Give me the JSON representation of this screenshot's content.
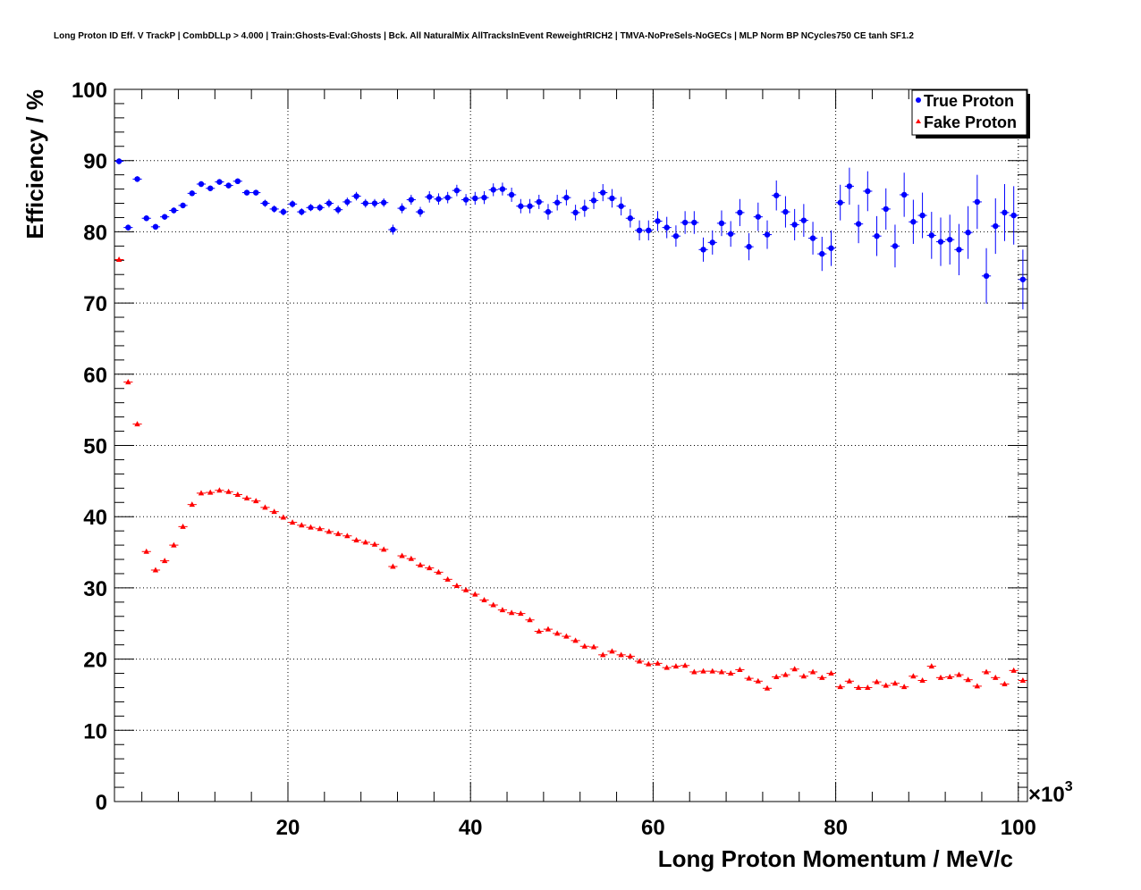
{
  "chart_data": {
    "type": "scatter",
    "title": "Long Proton ID Eff. V TrackP | CombDLLp > 4.000 | Train:Ghosts-Eval:Ghosts | Bck. All NaturalMix AllTracksInEvent ReweightRICH2 | TMVA-NoPreSels-NoGECs | MLP Norm BP NCycles750 CE tanh SF1.2",
    "xlabel": "Long Proton Momentum / MeV/c",
    "ylabel": "Efficiency / %",
    "x_multiplier_label": "×10",
    "x_multiplier_exp": "3",
    "xlim": [
      1,
      101
    ],
    "ylim": [
      0,
      100
    ],
    "x_ticks": [
      "20",
      "40",
      "60",
      "80",
      "100"
    ],
    "y_ticks": [
      "0",
      "10",
      "20",
      "30",
      "40",
      "50",
      "60",
      "70",
      "80",
      "90",
      "100"
    ],
    "grid": true,
    "legend_position": "top-right",
    "series": [
      {
        "name": "True Proton",
        "color": "#0000ff",
        "marker": "circle",
        "x": [
          1.5,
          2.5,
          3.5,
          4.5,
          5.5,
          6.5,
          7.5,
          8.5,
          9.5,
          10.5,
          11.5,
          12.5,
          13.5,
          14.5,
          15.5,
          16.5,
          17.5,
          18.5,
          19.5,
          20.5,
          21.5,
          22.5,
          23.5,
          24.5,
          25.5,
          26.5,
          27.5,
          28.5,
          29.5,
          30.5,
          31.5,
          32.5,
          33.5,
          34.5,
          35.5,
          36.5,
          37.5,
          38.5,
          39.5,
          40.5,
          41.5,
          42.5,
          43.5,
          44.5,
          45.5,
          46.5,
          47.5,
          48.5,
          49.5,
          50.5,
          51.5,
          52.5,
          53.5,
          54.5,
          55.5,
          56.5,
          57.5,
          58.5,
          59.5,
          60.5,
          61.5,
          62.5,
          63.5,
          64.5,
          65.5,
          66.5,
          67.5,
          68.5,
          69.5,
          70.5,
          71.5,
          72.5,
          73.5,
          74.5,
          75.5,
          76.5,
          77.5,
          78.5,
          79.5,
          80.5,
          81.5,
          82.5,
          83.5,
          84.5,
          85.5,
          86.5,
          87.5,
          88.5,
          89.5,
          90.5,
          91.5,
          92.5,
          93.5,
          94.5,
          95.5,
          96.5,
          97.5,
          98.5,
          99.5,
          100.5
        ],
        "y": [
          89.9,
          80.6,
          87.4,
          81.9,
          80.7,
          82.1,
          83.0,
          83.7,
          85.4,
          86.7,
          86.1,
          87.0,
          86.5,
          87.1,
          85.5,
          85.5,
          84.0,
          83.2,
          82.8,
          83.9,
          82.8,
          83.4,
          83.4,
          84.0,
          83.1,
          84.2,
          85.0,
          84.0,
          84.0,
          84.1,
          80.3,
          83.3,
          84.5,
          82.8,
          84.9,
          84.6,
          84.8,
          85.8,
          84.5,
          84.7,
          84.8,
          85.9,
          86.0,
          85.2,
          83.6,
          83.6,
          84.2,
          82.8,
          84.1,
          84.8,
          82.7,
          83.3,
          84.4,
          85.5,
          84.7,
          83.6,
          81.9,
          80.2,
          80.2,
          81.5,
          80.6,
          79.4,
          81.3,
          81.3,
          77.5,
          78.5,
          81.2,
          79.7,
          82.7,
          77.9,
          82.1,
          79.6,
          85.1,
          82.8,
          81.0,
          81.6,
          79.1,
          76.9,
          77.7,
          84.1,
          86.4,
          81.1,
          85.7,
          79.4,
          83.2,
          78.0,
          85.2,
          81.4,
          82.3,
          79.5,
          78.6,
          78.9,
          77.5,
          79.9,
          84.2,
          73.8,
          80.8,
          82.7,
          82.3,
          73.3
        ],
        "y_err": [
          0.4,
          0.4,
          0.4,
          0.4,
          0.4,
          0.4,
          0.4,
          0.4,
          0.4,
          0.4,
          0.4,
          0.4,
          0.4,
          0.4,
          0.4,
          0.4,
          0.5,
          0.5,
          0.5,
          0.5,
          0.5,
          0.5,
          0.5,
          0.6,
          0.6,
          0.6,
          0.6,
          0.6,
          0.6,
          0.6,
          0.7,
          0.7,
          0.7,
          0.7,
          0.8,
          0.8,
          0.8,
          0.8,
          0.8,
          0.9,
          0.9,
          0.9,
          0.9,
          1.0,
          1.0,
          1.0,
          1.0,
          1.1,
          1.1,
          1.1,
          1.1,
          1.2,
          1.2,
          1.2,
          1.3,
          1.3,
          1.3,
          1.4,
          1.4,
          1.4,
          1.5,
          1.5,
          1.6,
          1.6,
          1.7,
          1.7,
          1.8,
          1.8,
          1.9,
          1.9,
          2.0,
          2.0,
          2.1,
          2.2,
          2.2,
          2.3,
          2.3,
          2.4,
          2.5,
          2.5,
          2.6,
          2.7,
          2.8,
          2.8,
          2.9,
          3.0,
          3.1,
          3.1,
          3.2,
          3.3,
          3.4,
          3.5,
          3.6,
          3.7,
          3.8,
          3.9,
          3.9,
          4.0,
          4.1,
          4.2
        ]
      },
      {
        "name": "Fake Proton",
        "color": "#ff0000",
        "marker": "triangle",
        "x": [
          1.5,
          2.5,
          3.5,
          4.5,
          5.5,
          6.5,
          7.5,
          8.5,
          9.5,
          10.5,
          11.5,
          12.5,
          13.5,
          14.5,
          15.5,
          16.5,
          17.5,
          18.5,
          19.5,
          20.5,
          21.5,
          22.5,
          23.5,
          24.5,
          25.5,
          26.5,
          27.5,
          28.5,
          29.5,
          30.5,
          31.5,
          32.5,
          33.5,
          34.5,
          35.5,
          36.5,
          37.5,
          38.5,
          39.5,
          40.5,
          41.5,
          42.5,
          43.5,
          44.5,
          45.5,
          46.5,
          47.5,
          48.5,
          49.5,
          50.5,
          51.5,
          52.5,
          53.5,
          54.5,
          55.5,
          56.5,
          57.5,
          58.5,
          59.5,
          60.5,
          61.5,
          62.5,
          63.5,
          64.5,
          65.5,
          66.5,
          67.5,
          68.5,
          69.5,
          70.5,
          71.5,
          72.5,
          73.5,
          74.5,
          75.5,
          76.5,
          77.5,
          78.5,
          79.5,
          80.5,
          81.5,
          82.5,
          83.5,
          84.5,
          85.5,
          86.5,
          87.5,
          88.5,
          89.5,
          90.5,
          91.5,
          92.5,
          93.5,
          94.5,
          95.5,
          96.5,
          97.5,
          98.5,
          99.5,
          100.5
        ],
        "y": [
          76.1,
          58.9,
          53.0,
          35.1,
          32.5,
          33.8,
          36.0,
          38.6,
          41.7,
          43.3,
          43.4,
          43.7,
          43.5,
          43.1,
          42.6,
          42.2,
          41.3,
          40.7,
          39.9,
          39.2,
          38.8,
          38.5,
          38.3,
          37.9,
          37.6,
          37.3,
          36.7,
          36.4,
          36.1,
          35.4,
          33.0,
          34.5,
          34.1,
          33.2,
          32.8,
          32.2,
          31.2,
          30.3,
          29.7,
          29.1,
          28.3,
          27.6,
          26.9,
          26.5,
          26.4,
          25.5,
          23.9,
          24.2,
          23.6,
          23.2,
          22.6,
          21.8,
          21.7,
          20.6,
          21.1,
          20.6,
          20.4,
          19.7,
          19.3,
          19.4,
          18.8,
          19.0,
          19.1,
          18.2,
          18.3,
          18.3,
          18.2,
          18.0,
          18.5,
          17.3,
          16.9,
          15.9,
          17.5,
          17.8,
          18.6,
          17.6,
          18.2,
          17.4,
          18.0,
          16.1,
          16.9,
          16.0,
          16.0,
          16.8,
          16.3,
          16.6,
          16.1,
          17.6,
          17.0,
          19.0,
          17.4,
          17.5,
          17.8,
          17.1,
          16.2,
          18.2,
          17.4,
          16.5,
          18.4,
          17.0
        ]
      }
    ]
  }
}
